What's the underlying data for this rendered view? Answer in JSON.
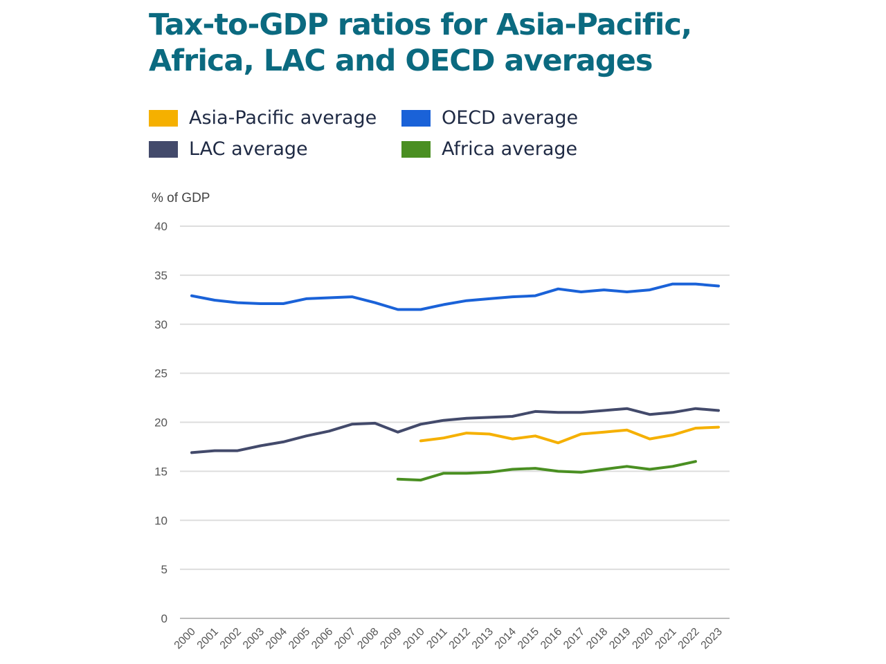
{
  "chart_data": {
    "type": "line",
    "title": "Tax-to-GDP ratios for Asia-Pacific, Africa, LAC and OECD averages",
    "ylabel": "% of GDP",
    "xlabel": "",
    "ylim": [
      0,
      40
    ],
    "yticks": [
      0,
      5,
      10,
      15,
      20,
      25,
      30,
      35,
      40
    ],
    "grid": true,
    "legend_position": "top",
    "x": [
      2000,
      2001,
      2002,
      2003,
      2004,
      2005,
      2006,
      2007,
      2008,
      2009,
      2010,
      2011,
      2012,
      2013,
      2014,
      2015,
      2016,
      2017,
      2018,
      2019,
      2020,
      2021,
      2022,
      2023
    ],
    "series": [
      {
        "name": "Asia-Pacific average",
        "color": "#f5b000",
        "values": [
          null,
          null,
          null,
          null,
          null,
          null,
          null,
          null,
          null,
          null,
          18.1,
          18.4,
          18.9,
          18.8,
          18.3,
          18.6,
          17.9,
          18.8,
          19.0,
          19.2,
          18.3,
          18.7,
          19.4,
          19.5
        ]
      },
      {
        "name": "OECD average",
        "color": "#1a62d8",
        "values": [
          32.9,
          32.45,
          32.2,
          32.1,
          32.1,
          32.6,
          32.7,
          32.8,
          32.2,
          31.5,
          31.5,
          32.0,
          32.4,
          32.6,
          32.8,
          32.9,
          33.6,
          33.3,
          33.5,
          33.3,
          33.5,
          34.1,
          34.1,
          33.9
        ]
      },
      {
        "name": "LAC average",
        "color": "#434a6b",
        "values": [
          16.9,
          17.1,
          17.1,
          17.6,
          18.0,
          18.6,
          19.1,
          19.8,
          19.9,
          19.0,
          19.8,
          20.2,
          20.4,
          20.5,
          20.6,
          21.1,
          21.0,
          21.0,
          21.2,
          21.4,
          20.8,
          21.0,
          21.4,
          21.2
        ]
      },
      {
        "name": "Africa average",
        "color": "#4a8f22",
        "values": [
          null,
          null,
          null,
          null,
          null,
          null,
          null,
          null,
          null,
          14.2,
          14.1,
          14.8,
          14.8,
          14.9,
          15.2,
          15.3,
          15.0,
          14.9,
          15.2,
          15.5,
          15.2,
          15.5,
          16.0,
          null
        ]
      }
    ]
  }
}
